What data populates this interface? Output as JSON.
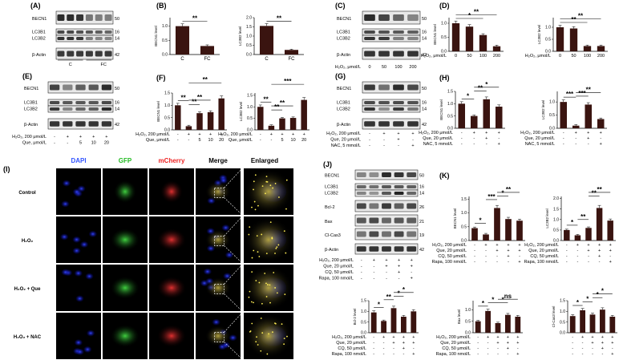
{
  "panels": [
    {
      "id": "A",
      "label": "(A)",
      "kind": "blot",
      "bands": [
        "BECN1",
        "LC3B1",
        "LC3B2",
        "β-Actin"
      ],
      "kda": [
        "50",
        "16",
        "14",
        "42"
      ],
      "groups": [
        "C",
        "FC"
      ]
    },
    {
      "id": "B",
      "label": "(B)",
      "kind": "bars",
      "charts": [
        {
          "ylabel": "BECN1 level",
          "categories": [
            "C",
            "FC"
          ],
          "values": [
            1.0,
            0.3
          ],
          "ylim": [
            0,
            1.3
          ],
          "sig": [
            {
              "a": 0,
              "b": 1,
              "text": "**"
            }
          ]
        },
        {
          "ylabel": "LC3B2 level",
          "categories": [
            "C",
            "FC"
          ],
          "values": [
            1.55,
            0.25
          ],
          "ylim": [
            0,
            2.0
          ],
          "sig": [
            {
              "a": 0,
              "b": 1,
              "text": "**"
            }
          ]
        }
      ]
    },
    {
      "id": "C",
      "label": "(C)",
      "kind": "blot",
      "bands": [
        "BECN1",
        "LC3B1",
        "LC3B2",
        "β-Actin"
      ],
      "kda": [
        "50",
        "16",
        "14",
        "42"
      ],
      "conditions": [
        {
          "label": "H₂O₂, μmol/L",
          "values": [
            "0",
            "50",
            "100",
            "200"
          ]
        }
      ]
    },
    {
      "id": "D",
      "label": "(D)",
      "kind": "bars",
      "conditions": [
        {
          "label": "H₂O₂, μmol/L",
          "values": [
            "0",
            "50",
            "100",
            "200"
          ]
        }
      ],
      "charts": [
        {
          "ylabel": "BECN1 level",
          "categories": [
            "0",
            "50",
            "100",
            "200"
          ],
          "values": [
            1.0,
            0.88,
            0.58,
            0.18
          ],
          "ylim": [
            0,
            1.2
          ],
          "sig": [
            {
              "a": 0,
              "b": 2,
              "text": "*"
            },
            {
              "a": 0,
              "b": 3,
              "text": "**"
            }
          ]
        },
        {
          "ylabel": "LC3B2 level",
          "categories": [
            "0",
            "50",
            "100",
            "200"
          ],
          "values": [
            1.0,
            0.95,
            0.22,
            0.22
          ],
          "ylim": [
            0,
            1.4
          ],
          "sig": [
            {
              "a": 0,
              "b": 2,
              "text": "**"
            },
            {
              "a": 0,
              "b": 3,
              "text": "**"
            }
          ]
        }
      ]
    },
    {
      "id": "E",
      "label": "(E)",
      "kind": "blot",
      "bands": [
        "BECN1",
        "LC3B1",
        "LC3B2",
        "β-Actin"
      ],
      "kda": [
        "50",
        "16",
        "14",
        "42"
      ],
      "conditions": [
        {
          "label": "H₂O₂, 200 μmol/L",
          "values": [
            "-",
            "+",
            "+",
            "+",
            "+"
          ]
        },
        {
          "label": "Que, μmol/L",
          "values": [
            "-",
            "-",
            "5",
            "10",
            "20"
          ]
        }
      ]
    },
    {
      "id": "F",
      "label": "(F)",
      "kind": "bars",
      "conditions": [
        {
          "label": "H₂O₂, 200 μmol/L",
          "values": [
            "-",
            "+",
            "+",
            "+",
            "+"
          ]
        },
        {
          "label": "Que, μmol/L",
          "values": [
            "-",
            "-",
            "5",
            "10",
            "20"
          ]
        }
      ],
      "charts": [
        {
          "ylabel": "BECN1 level",
          "categories": [
            "1",
            "2",
            "3",
            "4",
            "5"
          ],
          "values": [
            1.0,
            0.15,
            0.68,
            0.72,
            1.28
          ],
          "ylim": [
            0,
            1.5
          ],
          "sig": [
            {
              "a": 0,
              "b": 1,
              "text": "**"
            },
            {
              "a": 1,
              "b": 2,
              "text": "**"
            },
            {
              "a": 1,
              "b": 3,
              "text": "**"
            },
            {
              "a": 1,
              "b": 4,
              "text": "**"
            }
          ]
        },
        {
          "ylabel": "LC3B2 level",
          "categories": [
            "1",
            "2",
            "3",
            "4",
            "5"
          ],
          "values": [
            1.0,
            0.18,
            0.5,
            0.52,
            1.3
          ],
          "ylim": [
            0,
            1.6
          ],
          "sig": [
            {
              "a": 0,
              "b": 1,
              "text": "**"
            },
            {
              "a": 1,
              "b": 2,
              "text": "**"
            },
            {
              "a": 1,
              "b": 3,
              "text": "**"
            },
            {
              "a": 1,
              "b": 4,
              "text": "***"
            }
          ]
        }
      ]
    },
    {
      "id": "G",
      "label": "(G)",
      "kind": "blot",
      "bands": [
        "BECN1",
        "LC3B1",
        "LC3B2",
        "β-Actin"
      ],
      "kda": [
        "50",
        "16",
        "14",
        "42"
      ],
      "conditions": [
        {
          "label": "H₂O₂, 200 μmol/L",
          "values": [
            "-",
            "+",
            "+",
            "+"
          ]
        },
        {
          "label": "Que, 20 μmol/L",
          "values": [
            "-",
            "-",
            "+",
            "-"
          ]
        },
        {
          "label": "NAC, 5 mmol/L",
          "values": [
            "-",
            "-",
            "-",
            "+"
          ]
        }
      ]
    },
    {
      "id": "H",
      "label": "(H)",
      "kind": "bars",
      "conditions": [
        {
          "label": "H₂O₂, 200 μmol/L",
          "values": [
            "-",
            "+",
            "+",
            "+"
          ]
        },
        {
          "label": "Que, 20 μmol/L",
          "values": [
            "-",
            "-",
            "+",
            "-"
          ]
        },
        {
          "label": "NAC, 5 mmol/L",
          "values": [
            "-",
            "-",
            "-",
            "+"
          ]
        }
      ],
      "charts": [
        {
          "ylabel": "BECN1 level",
          "categories": [
            "1",
            "2",
            "3",
            "4"
          ],
          "values": [
            1.0,
            0.5,
            1.18,
            0.88
          ],
          "ylim": [
            0,
            1.5
          ],
          "sig": [
            {
              "a": 0,
              "b": 1,
              "text": "*"
            },
            {
              "a": 1,
              "b": 2,
              "text": "**"
            },
            {
              "a": 1,
              "b": 3,
              "text": "*"
            }
          ]
        },
        {
          "ylabel": "LC3B2 level",
          "categories": [
            "1",
            "2",
            "3",
            "4"
          ],
          "values": [
            1.0,
            0.1,
            0.9,
            0.35
          ],
          "ylim": [
            0,
            1.4
          ],
          "sig": [
            {
              "a": 0,
              "b": 1,
              "text": "***"
            },
            {
              "a": 1,
              "b": 2,
              "text": "***"
            },
            {
              "a": 1,
              "b": 3,
              "text": "**"
            }
          ]
        }
      ]
    },
    {
      "id": "I",
      "label": "(I)",
      "kind": "microscopy",
      "columns": [
        "DAPI",
        "GFP",
        "mCherry",
        "Merge",
        "Enlarged"
      ],
      "column_colors": [
        "#3355ff",
        "#22bb22",
        "#ee2222",
        "#000000",
        "#000000"
      ],
      "rows": [
        "Control",
        "H₂O₂",
        "H₂O₂ + Que",
        "H₂O₂ + NAC"
      ]
    },
    {
      "id": "J",
      "label": "(J)",
      "kind": "blot",
      "bands": [
        "BECN1",
        "LC3B1",
        "LC3B2",
        "Bcl-2",
        "Bax",
        "Cl-Cas3",
        "β-Actin"
      ],
      "kda": [
        "50",
        "16",
        "14",
        "26",
        "21",
        "19",
        "42"
      ],
      "conditions": [
        {
          "label": "H₂O₂, 200 μmol/L",
          "values": [
            "-",
            "+",
            "+",
            "+",
            "+"
          ]
        },
        {
          "label": "Que, 20 μmol/L",
          "values": [
            "-",
            "-",
            "+",
            "+",
            "+"
          ]
        },
        {
          "label": "CQ, 50 μmol/L",
          "values": [
            "-",
            "-",
            "-",
            "+",
            "-"
          ]
        },
        {
          "label": "Rapa, 100 nmol/L",
          "values": [
            "-",
            "-",
            "-",
            "-",
            "+"
          ]
        }
      ]
    },
    {
      "id": "K",
      "label": "(K)",
      "kind": "bars",
      "conditions": [
        {
          "label": "H₂O₂, 200 μmol/L",
          "values": [
            "-",
            "+",
            "+",
            "+",
            "+"
          ]
        },
        {
          "label": "Que, 20 μmol/L",
          "values": [
            "-",
            "-",
            "+",
            "+",
            "+"
          ]
        },
        {
          "label": "CQ, 50 μmol/L",
          "values": [
            "-",
            "-",
            "-",
            "+",
            "-"
          ]
        },
        {
          "label": "Rapa, 100 nmol/L",
          "values": [
            "-",
            "-",
            "-",
            "-",
            "+"
          ]
        }
      ],
      "charts": [
        {
          "ylabel": "BECN1 level",
          "categories": [
            "1",
            "2",
            "3",
            "4",
            "5"
          ],
          "values": [
            0.45,
            0.22,
            1.18,
            0.78,
            0.72
          ],
          "ylim": [
            0,
            1.6
          ],
          "sig": [
            {
              "a": 0,
              "b": 1,
              "text": "*"
            },
            {
              "a": 1,
              "b": 2,
              "text": "***"
            },
            {
              "a": 2,
              "b": 3,
              "text": "*"
            },
            {
              "a": 2,
              "b": 4,
              "text": "**"
            }
          ]
        },
        {
          "ylabel": "LC3B2 level",
          "categories": [
            "1",
            "2",
            "3",
            "4",
            "5"
          ],
          "values": [
            0.5,
            0.25,
            0.6,
            1.55,
            0.95
          ],
          "ylim": [
            0,
            2.1
          ],
          "sig": [
            {
              "a": 0,
              "b": 1,
              "text": "*"
            },
            {
              "a": 1,
              "b": 2,
              "text": "**"
            },
            {
              "a": 2,
              "b": 3,
              "text": "**"
            },
            {
              "a": 2,
              "b": 4,
              "text": "**"
            }
          ]
        }
      ]
    },
    {
      "id": "K2",
      "label": "",
      "kind": "bars",
      "conditions": [
        {
          "label": "H₂O₂, 200 μmol/L",
          "values": [
            "-",
            "+",
            "+",
            "+",
            "+"
          ]
        },
        {
          "label": "Que, 20 μmol/L",
          "values": [
            "-",
            "-",
            "+",
            "+",
            "+"
          ]
        },
        {
          "label": "CQ, 50 μmol/L",
          "values": [
            "-",
            "-",
            "-",
            "+",
            "-"
          ]
        },
        {
          "label": "Rapa, 100 nmol/L",
          "values": [
            "-",
            "-",
            "-",
            "-",
            "+"
          ]
        }
      ],
      "charts": [
        {
          "ylabel": "Bcl-2 level",
          "categories": [
            "1",
            "2",
            "3",
            "4",
            "5"
          ],
          "values": [
            0.95,
            0.55,
            1.15,
            0.75,
            1.0
          ],
          "ylim": [
            0,
            1.5
          ],
          "sig": [
            {
              "a": 0,
              "b": 1,
              "text": "*"
            },
            {
              "a": 1,
              "b": 2,
              "text": "**"
            },
            {
              "a": 2,
              "b": 3,
              "text": "*"
            },
            {
              "a": 2,
              "b": 4,
              "text": "*"
            }
          ]
        },
        {
          "ylabel": "Bax level",
          "categories": [
            "1",
            "2",
            "3",
            "4",
            "5"
          ],
          "values": [
            0.5,
            0.95,
            0.42,
            0.78,
            0.7
          ],
          "ylim": [
            0,
            1.4
          ],
          "sig": [
            {
              "a": 0,
              "b": 1,
              "text": "*"
            },
            {
              "a": 1,
              "b": 2,
              "text": "*"
            },
            {
              "a": 2,
              "b": 3,
              "text": "*"
            },
            {
              "a": 2,
              "b": 4,
              "text": "ns"
            }
          ]
        },
        {
          "ylabel": "Cl-Cas3 level",
          "categories": [
            "1",
            "2",
            "3",
            "4",
            "5"
          ],
          "values": [
            0.78,
            1.05,
            0.85,
            1.08,
            0.75
          ],
          "ylim": [
            0,
            1.5
          ],
          "sig": [
            {
              "a": 0,
              "b": 1,
              "text": "*"
            },
            {
              "a": 1,
              "b": 2,
              "text": "*"
            },
            {
              "a": 2,
              "b": 3,
              "text": "*"
            },
            {
              "a": 2,
              "b": 4,
              "text": "*"
            }
          ]
        }
      ]
    }
  ]
}
